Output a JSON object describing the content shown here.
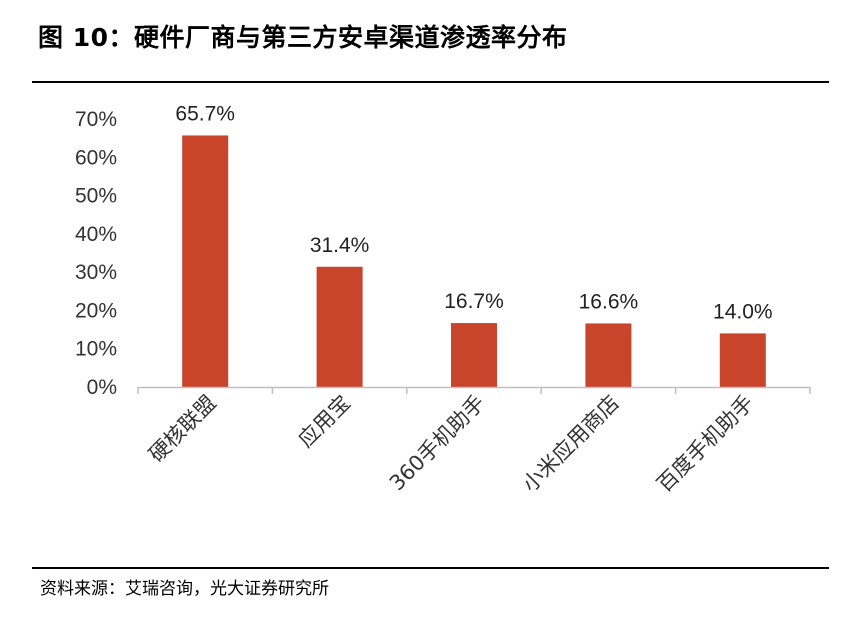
{
  "figure": {
    "title": "图 10：硬件厂商与第三方安卓渠道渗透率分布",
    "source": "资料来源：艾瑞咨询，光大证券研究所"
  },
  "chart_data": {
    "type": "bar",
    "categories": [
      "硬核联盟",
      "应用宝",
      "360手机助手",
      "小米应用商店",
      "百度手机助手"
    ],
    "values": [
      65.7,
      31.4,
      16.7,
      16.6,
      14.0
    ],
    "data_labels": [
      "65.7%",
      "31.4%",
      "16.7%",
      "16.6%",
      "14.0%"
    ],
    "yticks": [
      "0%",
      "10%",
      "20%",
      "30%",
      "40%",
      "50%",
      "60%",
      "70%"
    ],
    "ylim": [
      0,
      70
    ],
    "bar_color": "#C8442A",
    "grid": false,
    "legend": "none"
  }
}
